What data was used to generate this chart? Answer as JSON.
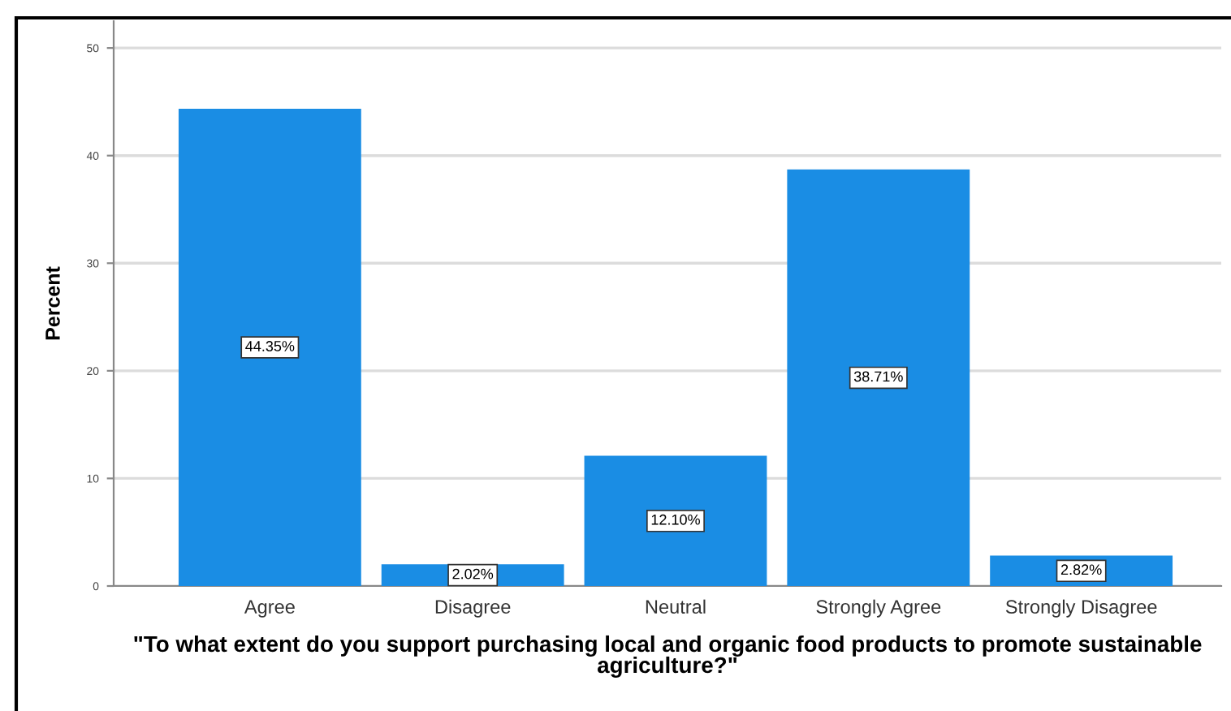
{
  "chart_data": {
    "type": "bar",
    "xlabel": "\"To what extent do you support purchasing local and organic food products to promote sustainable agriculture?\"",
    "ylabel": "Percent",
    "categories": [
      "Agree",
      "Disagree",
      "Neutral",
      "Strongly Agree",
      "Strongly Disagree"
    ],
    "values": [
      44.35,
      2.02,
      12.1,
      38.71,
      2.82
    ],
    "value_labels": [
      "44.35%",
      "2.02%",
      "12.10%",
      "38.71%",
      "2.82%"
    ],
    "color": "#1a8de4",
    "ylim": [
      0,
      52.5
    ],
    "yticks": [
      0,
      10,
      20,
      30,
      40,
      50
    ],
    "grid": "y"
  }
}
